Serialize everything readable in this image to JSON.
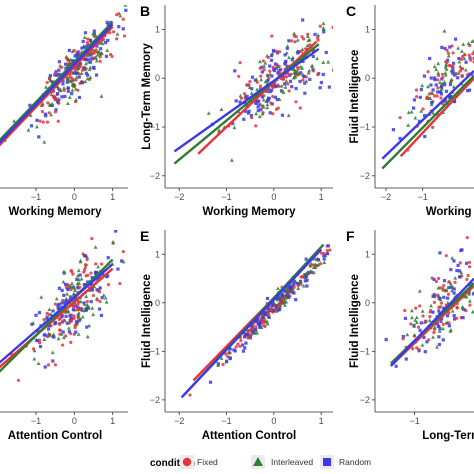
{
  "legend": {
    "title": "condition",
    "entries": [
      {
        "name": "Fixed",
        "color": "#e8333a",
        "shape": "circle"
      },
      {
        "name": "Interleaved",
        "color": "#2e7d32",
        "shape": "triangle"
      },
      {
        "name": "Random",
        "color": "#3a3ae8",
        "shape": "square"
      }
    ]
  },
  "chart_data": [
    {
      "panel": "A",
      "letter": "",
      "type": "scatter",
      "xlabel": "Working Memory",
      "ylabel": "",
      "xticks": [
        -1,
        0,
        1
      ],
      "yticks": [],
      "xlim": [
        -2.2,
        1.4
      ],
      "ylim": [
        -2.4,
        1.4
      ],
      "points": 300,
      "slope": 0.85,
      "spread": 0.32,
      "xmean": 0.0,
      "xsd": 0.55,
      "fits": {
        "Fixed": [
          [
            -2.0,
            -1.55
          ],
          [
            1.0,
            0.95
          ]
        ],
        "Interleaved": [
          [
            -2.0,
            -1.45
          ],
          [
            1.0,
            1.05
          ]
        ],
        "Random": [
          [
            -2.0,
            -1.5
          ],
          [
            1.0,
            1.0
          ]
        ]
      }
    },
    {
      "panel": "B",
      "letter": "B",
      "type": "scatter",
      "xlabel": "Working Memory",
      "ylabel": "Long-Term Memory",
      "xticks": [
        -2,
        -1,
        0,
        1
      ],
      "yticks": [
        -2,
        -1,
        0,
        1
      ],
      "xlim": [
        -2.3,
        1.25
      ],
      "ylim": [
        -2.25,
        1.5
      ],
      "points": 300,
      "slope": 0.7,
      "spread": 0.42,
      "xmean": 0.1,
      "xsd": 0.55,
      "fits": {
        "Fixed": [
          [
            -1.6,
            -1.55
          ],
          [
            0.9,
            0.75
          ]
        ],
        "Interleaved": [
          [
            -2.1,
            -1.75
          ],
          [
            0.95,
            0.7
          ]
        ],
        "Random": [
          [
            -2.1,
            -1.5
          ],
          [
            0.95,
            0.6
          ]
        ]
      }
    },
    {
      "panel": "C",
      "letter": "C",
      "type": "scatter",
      "xlabel": "Working M",
      "ylabel": "Fluid Intelligence",
      "xticks": [
        -2,
        -1
      ],
      "yticks": [
        -2,
        -1,
        0,
        1
      ],
      "xlim": [
        -2.3,
        0.4
      ],
      "ylim": [
        -2.25,
        1.5
      ],
      "points": 180,
      "slope": 0.75,
      "spread": 0.4,
      "xmean": -0.3,
      "xsd": 0.6,
      "fits": {
        "Fixed": [
          [
            -1.6,
            -1.6
          ],
          [
            0.4,
            0.0
          ]
        ],
        "Interleaved": [
          [
            -2.1,
            -1.85
          ],
          [
            0.4,
            0.05
          ]
        ],
        "Random": [
          [
            -2.1,
            -1.65
          ],
          [
            0.4,
            0.15
          ]
        ]
      }
    },
    {
      "panel": "D",
      "letter": "",
      "type": "scatter",
      "xlabel": "Attention Control",
      "ylabel": "",
      "xticks": [
        -1,
        0,
        1
      ],
      "yticks": [],
      "xlim": [
        -2.2,
        1.4
      ],
      "ylim": [
        -2.4,
        1.6
      ],
      "points": 300,
      "slope": 0.8,
      "spread": 0.42,
      "xmean": 0.0,
      "xsd": 0.55,
      "fits": {
        "Fixed": [
          [
            -2.0,
            -1.45
          ],
          [
            1.0,
            0.75
          ]
        ],
        "Interleaved": [
          [
            -2.0,
            -1.55
          ],
          [
            1.0,
            0.95
          ]
        ],
        "Random": [
          [
            -2.0,
            -1.35
          ],
          [
            1.0,
            0.85
          ]
        ]
      }
    },
    {
      "panel": "E",
      "letter": "E",
      "type": "scatter",
      "xlabel": "Attention Control",
      "ylabel": "Fluid Intelligence",
      "xticks": [
        -2,
        -1,
        0,
        1
      ],
      "yticks": [
        -2,
        -1,
        0,
        1
      ],
      "xlim": [
        -2.3,
        1.25
      ],
      "ylim": [
        -2.25,
        1.5
      ],
      "points": 300,
      "slope": 1.0,
      "spread": 0.12,
      "xmean": 0.1,
      "xsd": 0.6,
      "fits": {
        "Fixed": [
          [
            -1.7,
            -1.6
          ],
          [
            1.0,
            1.1
          ]
        ],
        "Interleaved": [
          [
            -1.9,
            -1.9
          ],
          [
            1.05,
            1.2
          ]
        ],
        "Random": [
          [
            -1.95,
            -1.95
          ],
          [
            1.0,
            1.1
          ]
        ]
      }
    },
    {
      "panel": "F",
      "letter": "F",
      "type": "scatter",
      "xlabel": "Long-Term I",
      "ylabel": "Fluid Intelligence",
      "xticks": [
        -1
      ],
      "yticks": [
        -2,
        -1,
        0,
        1
      ],
      "xlim": [
        -2.0,
        0.5
      ],
      "ylim": [
        -2.25,
        1.5
      ],
      "points": 200,
      "slope": 0.6,
      "spread": 0.42,
      "xmean": -0.2,
      "xsd": 0.55,
      "fits": {
        "Fixed": [
          [
            -1.6,
            -1.3
          ],
          [
            0.5,
            0.35
          ]
        ],
        "Interleaved": [
          [
            -1.6,
            -1.25
          ],
          [
            0.5,
            0.4
          ]
        ],
        "Random": [
          [
            -1.6,
            -1.3
          ],
          [
            0.5,
            0.5
          ]
        ]
      }
    }
  ]
}
